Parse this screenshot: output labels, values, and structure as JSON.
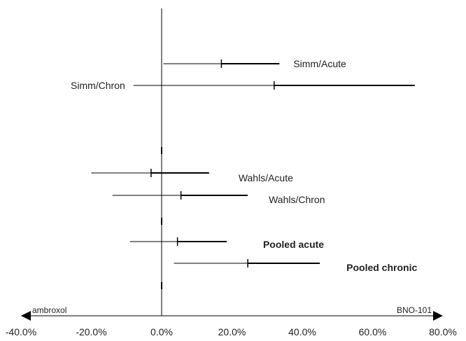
{
  "chart_data": {
    "type": "forest",
    "x_axis": {
      "min": -40,
      "max": 80,
      "ticks": [
        -40,
        -20,
        0,
        20,
        40,
        60,
        80
      ],
      "tick_labels": [
        "-40.0%",
        "-20.0%",
        "0.0%",
        "20.0%",
        "40.0%",
        "60.0%",
        "80.0%"
      ],
      "left_label": "ambroxol",
      "right_label": "BNO-101"
    },
    "rows": [
      {
        "label": "Simm/Acute",
        "estimate": 17.0,
        "ci": [
          0.5,
          33.5
        ],
        "bold": false,
        "label_side": "right"
      },
      {
        "label": "Simm/Chron",
        "estimate": 32.0,
        "ci": [
          -8.0,
          72.0
        ],
        "bold": false,
        "label_side": "left"
      },
      {
        "label": "",
        "estimate": null,
        "ci": null,
        "bold": false,
        "label_side": "none"
      },
      {
        "label": "Wahls/Acute",
        "estimate": -3.0,
        "ci": [
          -20.0,
          13.5
        ],
        "bold": false,
        "label_side": "right"
      },
      {
        "label": "Wahls/Chron",
        "estimate": 5.5,
        "ci": [
          -14.0,
          24.5
        ],
        "bold": false,
        "label_side": "right"
      },
      {
        "label": "Pooled acute",
        "estimate": 4.5,
        "ci": [
          -9.0,
          18.5
        ],
        "bold": true,
        "label_side": "right"
      },
      {
        "label": "Pooled chronic",
        "estimate": 24.5,
        "ci": [
          3.5,
          45.0
        ],
        "bold": true,
        "label_side": "right"
      }
    ],
    "reference_line": 0,
    "grid": false,
    "legend": "none"
  }
}
